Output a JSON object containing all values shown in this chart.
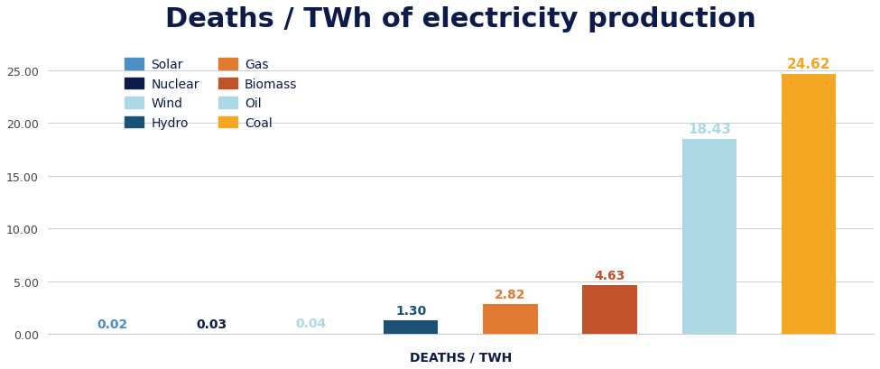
{
  "title": "Deaths / TWh of electricity production",
  "xlabel": "DEATHS / TWH",
  "categories": [
    "Solar",
    "Nuclear",
    "Wind",
    "Hydro",
    "Gas",
    "Biomass",
    "Oil",
    "Coal"
  ],
  "values": [
    0.02,
    0.03,
    0.04,
    1.3,
    2.82,
    4.63,
    18.43,
    24.62
  ],
  "bar_colors": [
    "#4a90c4",
    "#0d1b4b",
    "#add8e6",
    "#1a5276",
    "#e07a30",
    "#c0522a",
    "#add8e6",
    "#f5a623"
  ],
  "label_colors": [
    "#4a90c4",
    "#0d1b4b",
    "#add8e6",
    "#1a5276",
    "#e07a30",
    "#c0522a",
    "#add8e6",
    "#f5a623"
  ],
  "ylim": [
    0,
    27.5
  ],
  "yticks": [
    0.0,
    5.0,
    10.0,
    15.0,
    20.0,
    25.0
  ],
  "title_color": "#0d1b4b",
  "xlabel_color": "#0d1b4b",
  "background_color": "#ffffff",
  "grid_color": "#d0d0d0",
  "legend_items": [
    {
      "label": "Solar",
      "color": "#4a90c4"
    },
    {
      "label": "Nuclear",
      "color": "#0d1b4b"
    },
    {
      "label": "Wind",
      "color": "#add8e6"
    },
    {
      "label": "Hydro",
      "color": "#1a5276"
    },
    {
      "label": "Gas",
      "color": "#e07a30"
    },
    {
      "label": "Biomass",
      "color": "#c0522a"
    },
    {
      "label": "Oil",
      "color": "#add8e6"
    },
    {
      "label": "Coal",
      "color": "#f5a623"
    }
  ]
}
